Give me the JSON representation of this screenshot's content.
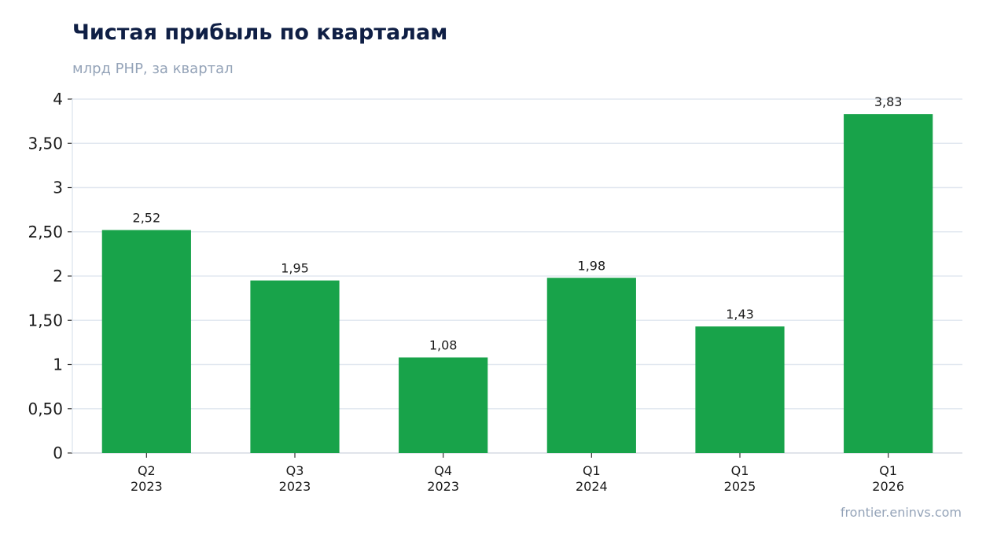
{
  "title": "Чистая прибыль по кварталам",
  "subtitle": "млрд РНР, за квартал",
  "source": "frontier.eninvs.com",
  "colors": {
    "bar": "#18a34a",
    "grid": "#e2e8f0",
    "title": "#0f1f45",
    "muted": "#94a3b8"
  },
  "chart_data": {
    "type": "bar",
    "categories": [
      [
        "Q2",
        "2023"
      ],
      [
        "Q3",
        "2023"
      ],
      [
        "Q4",
        "2023"
      ],
      [
        "Q1",
        "2024"
      ],
      [
        "Q1",
        "2025"
      ],
      [
        "Q1",
        "2026"
      ]
    ],
    "values": [
      2.52,
      1.95,
      1.08,
      1.98,
      1.43,
      3.83
    ],
    "value_labels": [
      "2,52",
      "1,95",
      "1,08",
      "1,98",
      "1,43",
      "3,83"
    ],
    "yticks": [
      0,
      0.5,
      1,
      1.5,
      2,
      2.5,
      3,
      3.5,
      4
    ],
    "ytick_labels": [
      "0",
      "0,50",
      "1",
      "1,50",
      "2",
      "2,50",
      "3",
      "3,50",
      "4"
    ],
    "ylim": [
      0,
      4
    ],
    "grid": true,
    "legend": false
  }
}
